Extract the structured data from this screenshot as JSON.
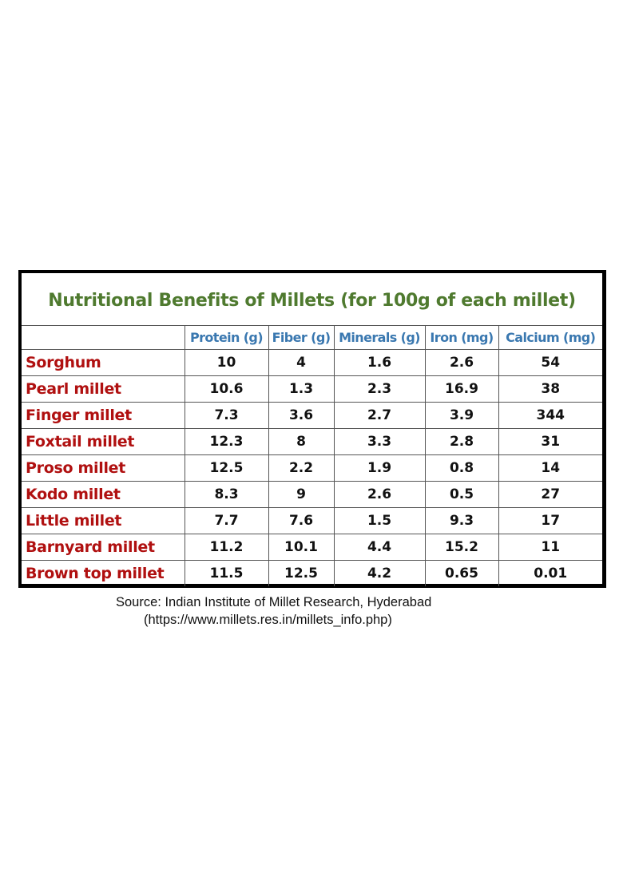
{
  "table": {
    "title": "Nutritional Benefits of Millets (for 100g of each millet)",
    "columns": [
      "",
      "Protein (g)",
      "Fiber (g)",
      "Minerals (g)",
      "Iron (mg)",
      "Calcium (mg)"
    ],
    "rows": [
      {
        "name": "Sorghum",
        "values": [
          "10",
          "4",
          "1.6",
          "2.6",
          "54"
        ]
      },
      {
        "name": "Pearl millet",
        "values": [
          "10.6",
          "1.3",
          "2.3",
          "16.9",
          "38"
        ]
      },
      {
        "name": "Finger millet",
        "values": [
          "7.3",
          "3.6",
          "2.7",
          "3.9",
          "344"
        ]
      },
      {
        "name": "Foxtail millet",
        "values": [
          "12.3",
          "8",
          "3.3",
          "2.8",
          "31"
        ]
      },
      {
        "name": "Proso millet",
        "values": [
          "12.5",
          "2.2",
          "1.9",
          "0.8",
          "14"
        ]
      },
      {
        "name": "Kodo millet",
        "values": [
          "8.3",
          "9",
          "2.6",
          "0.5",
          "27"
        ]
      },
      {
        "name": "Little millet",
        "values": [
          "7.7",
          "7.6",
          "1.5",
          "9.3",
          "17"
        ]
      },
      {
        "name": "Barnyard millet",
        "values": [
          "11.2",
          "10.1",
          "4.4",
          "15.2",
          "11"
        ]
      },
      {
        "name": "Brown top millet",
        "values": [
          "11.5",
          "12.5",
          "4.2",
          "0.65",
          "0.01"
        ]
      }
    ]
  },
  "source": {
    "line1": "Source: Indian Institute of Millet Research, Hyderabad",
    "line2": "(https://www.millets.res.in/millets_info.php)"
  },
  "colors": {
    "title": "#4f7a2f",
    "header": "#3a78b0",
    "row_label": "#b01010",
    "value": "#111111",
    "border": "#000000"
  },
  "chart_data": {
    "type": "table",
    "title": "Nutritional Benefits of Millets (for 100g of each millet)",
    "columns": [
      "Protein (g)",
      "Fiber (g)",
      "Minerals (g)",
      "Iron (mg)",
      "Calcium (mg)"
    ],
    "categories": [
      "Sorghum",
      "Pearl millet",
      "Finger millet",
      "Foxtail millet",
      "Proso millet",
      "Kodo millet",
      "Little millet",
      "Barnyard millet",
      "Brown top millet"
    ],
    "series": [
      {
        "name": "Protein (g)",
        "values": [
          10,
          10.6,
          7.3,
          12.3,
          12.5,
          8.3,
          7.7,
          11.2,
          11.5
        ]
      },
      {
        "name": "Fiber (g)",
        "values": [
          4,
          1.3,
          3.6,
          8,
          2.2,
          9,
          7.6,
          10.1,
          12.5
        ]
      },
      {
        "name": "Minerals (g)",
        "values": [
          1.6,
          2.3,
          2.7,
          3.3,
          1.9,
          2.6,
          1.5,
          4.4,
          4.2
        ]
      },
      {
        "name": "Iron (mg)",
        "values": [
          2.6,
          16.9,
          3.9,
          2.8,
          0.8,
          0.5,
          9.3,
          15.2,
          0.65
        ]
      },
      {
        "name": "Calcium (mg)",
        "values": [
          54,
          38,
          344,
          31,
          14,
          27,
          17,
          11,
          0.01
        ]
      }
    ],
    "source": "Source: Indian Institute of Millet Research, Hyderabad (https://www.millets.res.in/millets_info.php)"
  }
}
